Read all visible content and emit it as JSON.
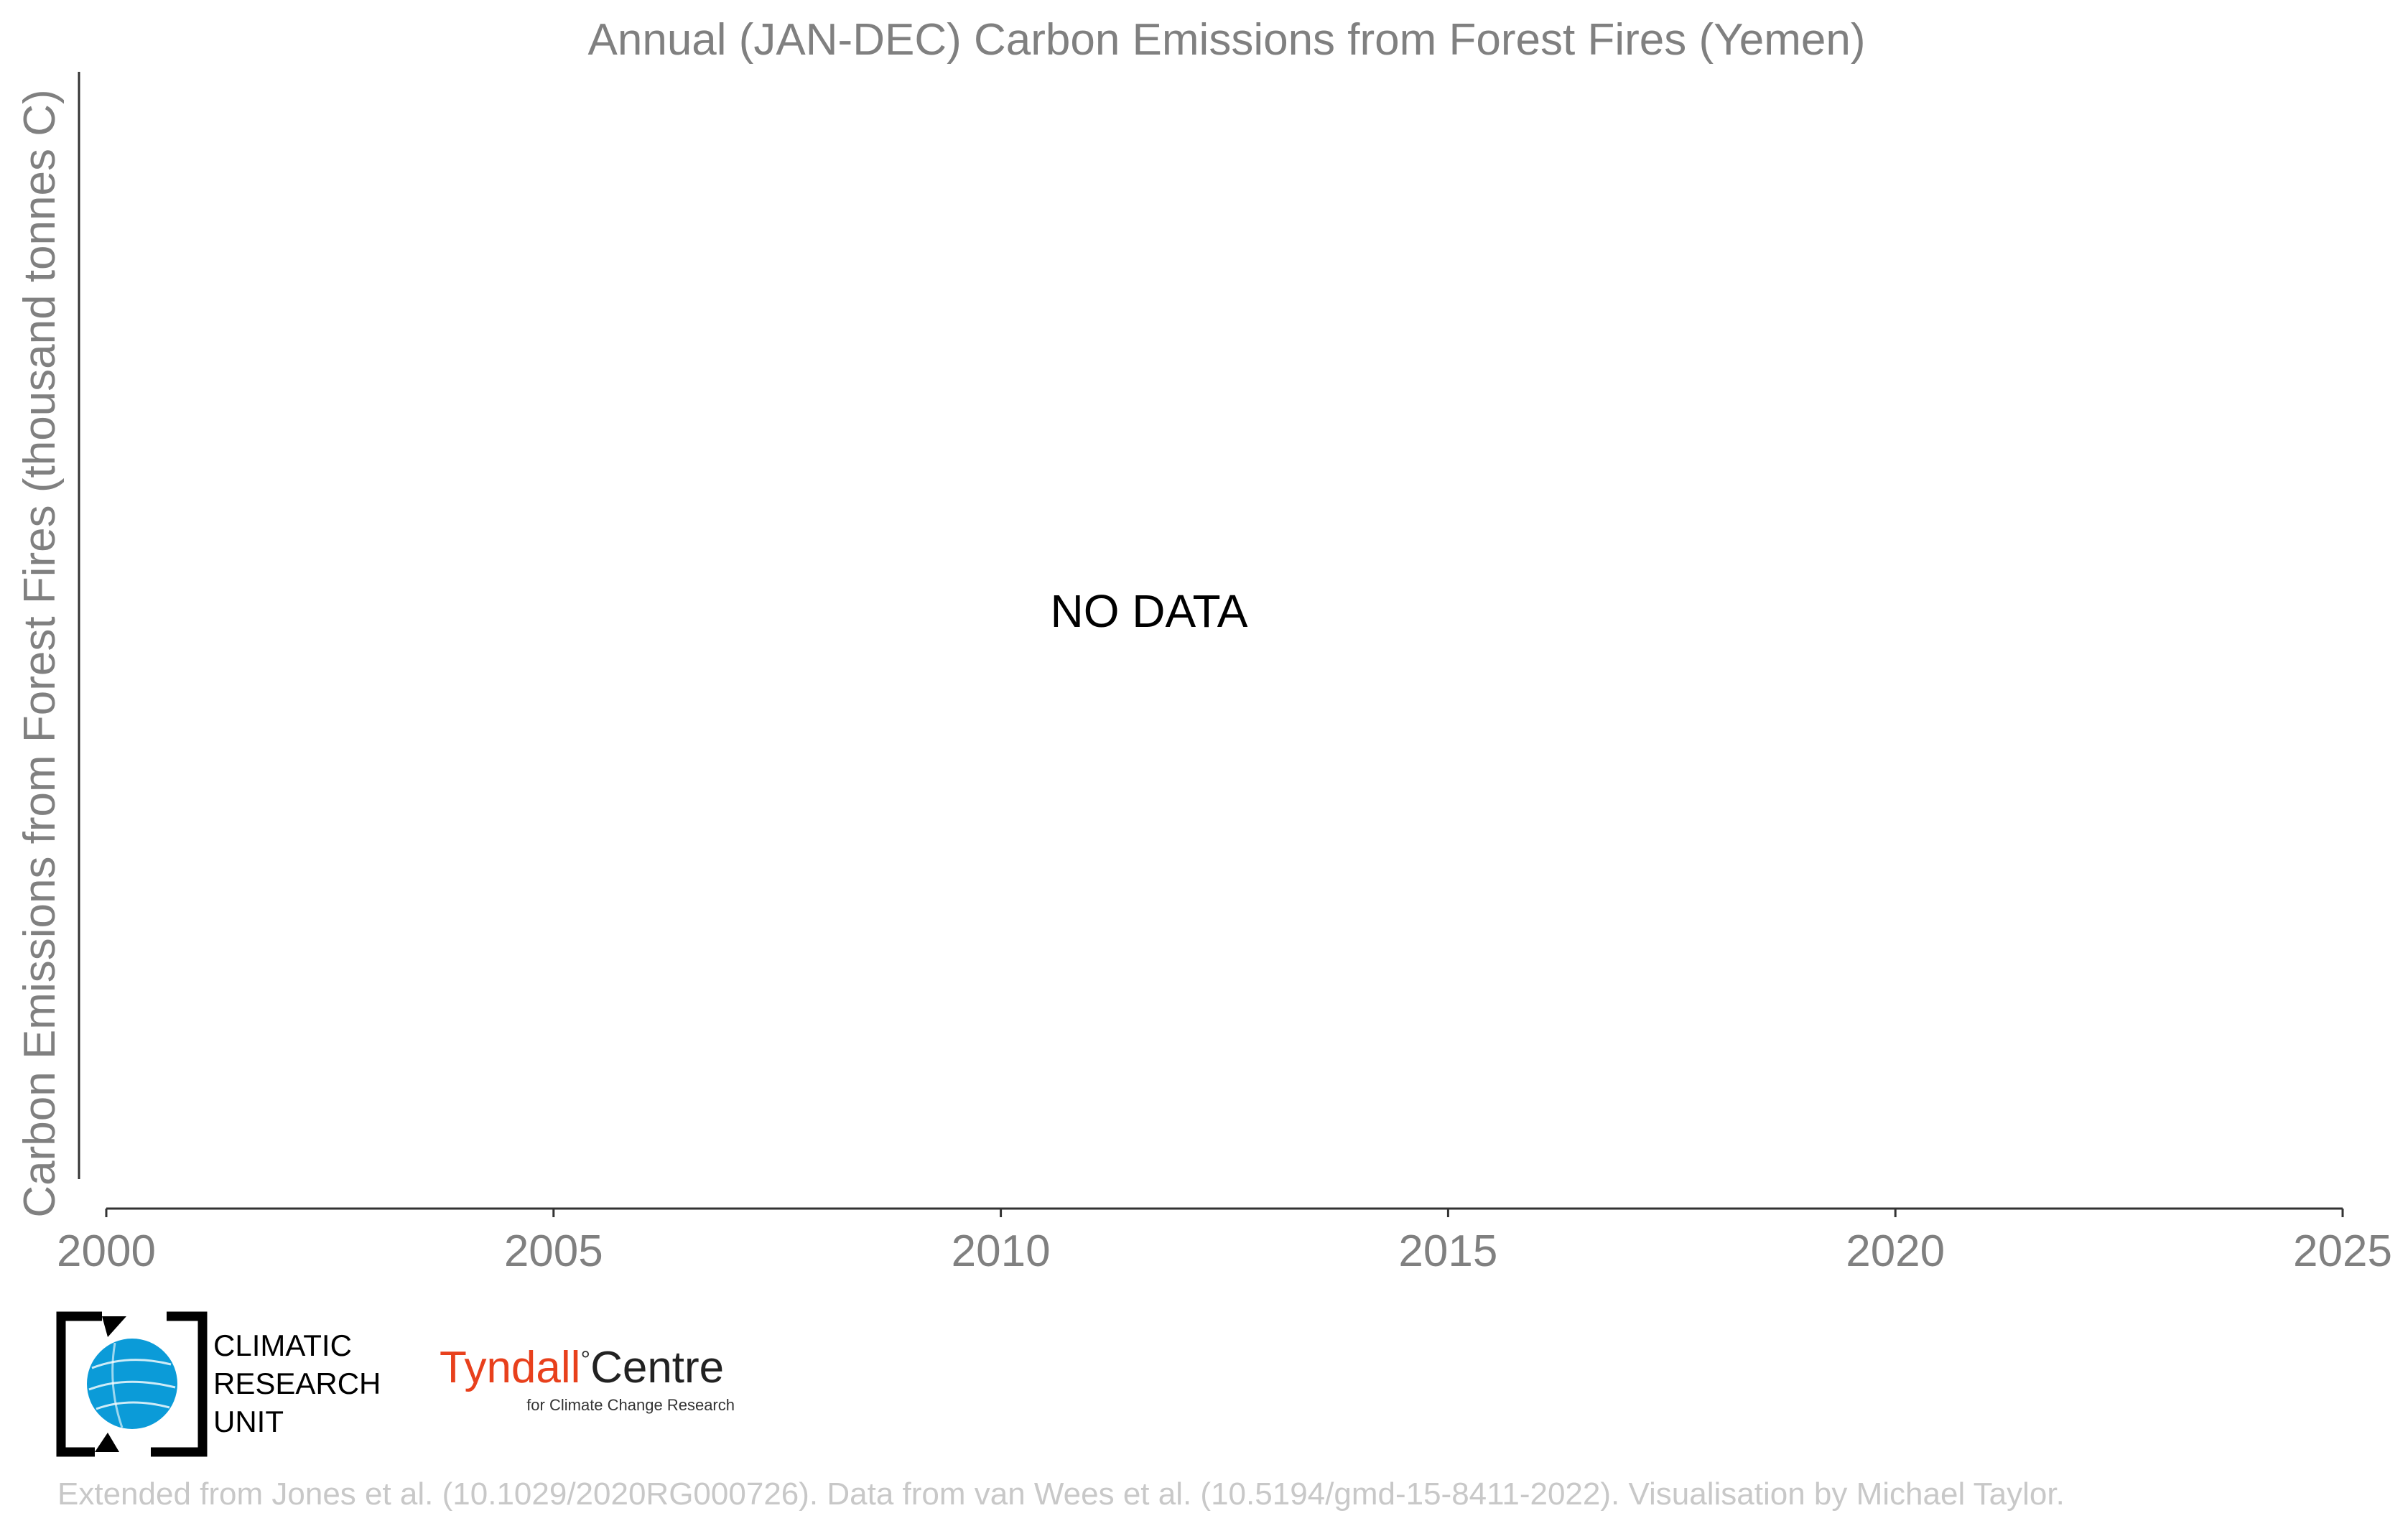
{
  "chart_data": {
    "type": "line",
    "title": "Annual (JAN-DEC) Carbon Emissions from Forest Fires (Yemen)",
    "xlabel": "",
    "ylabel": "Carbon Emissions from Forest Fires (thousand tonnes C)",
    "xlim": [
      2000,
      2025
    ],
    "x_ticks": [
      "2000",
      "2005",
      "2010",
      "2015",
      "2020",
      "2025"
    ],
    "series": [],
    "annotation": "NO DATA",
    "grid": false
  },
  "logos": {
    "cru": {
      "line1": "CLIMATIC",
      "line2": "RESEARCH",
      "line3": "UNIT",
      "globe_color": "#0b9bd8"
    },
    "tyndall": {
      "name": "Tyndall",
      "degree": "°",
      "centre": "Centre",
      "subtitle": "for Climate Change Research",
      "accent": "#e8401c"
    }
  },
  "credit": "Extended from Jones et al. (10.1029/2020RG000726). Data from van Wees et al. (10.5194/gmd-15-8411-2022). Visualisation by Michael Taylor."
}
